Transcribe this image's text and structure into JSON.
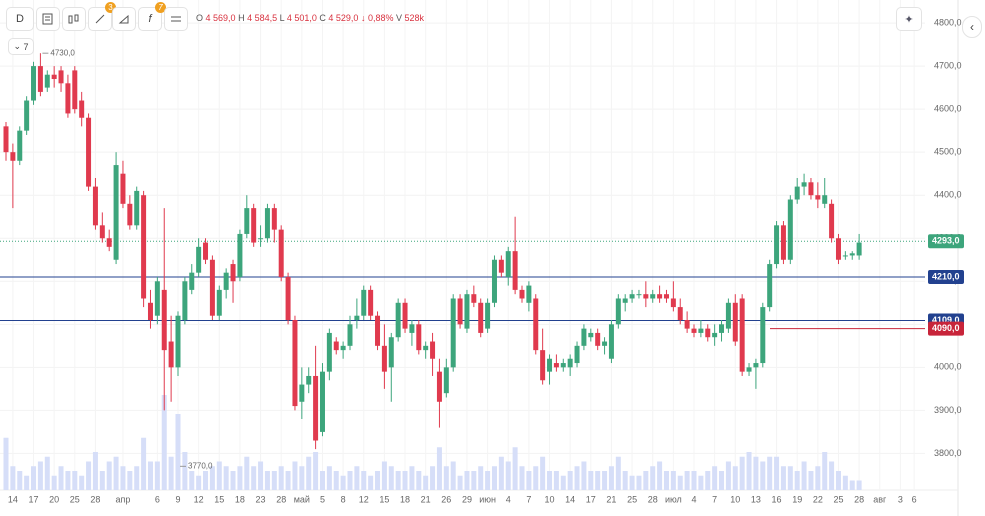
{
  "chart_data": {
    "type": "candlestick",
    "toolbar": {
      "timeframe": "D",
      "badges": [
        "3",
        "7"
      ],
      "indicators_count": "7"
    },
    "ohlc_header": {
      "o_label": "O",
      "o": "4 569,0",
      "h_label": "H",
      "h": "4 584,5",
      "l_label": "L",
      "l": "4 501,0",
      "c_label": "C",
      "c": "4 529,0",
      "change": "↓ 0,88%",
      "v_label": "V",
      "v": "528k"
    },
    "categories": [
      null,
      "14",
      null,
      null,
      "17",
      null,
      null,
      "20",
      null,
      null,
      "25",
      null,
      null,
      "28",
      null,
      null,
      null,
      "апр",
      null,
      null,
      null,
      null,
      "6",
      null,
      null,
      "9",
      null,
      null,
      "12",
      null,
      null,
      "15",
      null,
      null,
      "18",
      null,
      null,
      "23",
      null,
      null,
      "28",
      null,
      null,
      "май",
      null,
      null,
      "5",
      null,
      null,
      "8",
      null,
      null,
      "12",
      null,
      null,
      "15",
      null,
      null,
      "18",
      null,
      null,
      "21",
      null,
      null,
      "26",
      null,
      null,
      "29",
      null,
      null,
      "июн",
      null,
      null,
      "4",
      null,
      null,
      "7",
      null,
      null,
      "10",
      null,
      null,
      "14",
      null,
      null,
      "17",
      null,
      null,
      "21",
      null,
      null,
      "25",
      null,
      null,
      "28",
      null,
      null,
      "июл",
      null,
      null,
      "4",
      null,
      null,
      "7",
      null,
      null,
      "10",
      null,
      null,
      "13",
      null,
      null,
      "16",
      null,
      null,
      "19",
      null,
      null,
      "22",
      null,
      null,
      "25",
      null,
      null,
      "28",
      null,
      null,
      "авг",
      null,
      null,
      "3",
      null,
      "6"
    ],
    "open": [
      4560,
      4500,
      4480,
      4550,
      4620,
      4700,
      4650,
      4680,
      4690,
      4660,
      4690,
      4620,
      4580,
      4420,
      4330,
      4300,
      4250,
      4450,
      4380,
      4330,
      4400,
      4150,
      4120,
      4180,
      4060,
      4000,
      4110,
      4180,
      4220,
      4290,
      4250,
      4120,
      4180,
      4240,
      4210,
      4310,
      4370,
      4300,
      4300,
      4370,
      4320,
      4210,
      4110,
      3920,
      3960,
      3980,
      3850,
      3990,
      4060,
      4040,
      4050,
      4110,
      4120,
      4180,
      4120,
      4050,
      4000,
      4070,
      4150,
      4080,
      4100,
      4040,
      4060,
      3990,
      3940,
      4000,
      4160,
      4090,
      4170,
      4150,
      4090,
      4150,
      4250,
      4210,
      4270,
      4180,
      4150,
      4160,
      4040,
      3990,
      4010,
      4000,
      4000,
      4010,
      4050,
      4070,
      4080,
      4050,
      4020,
      4100,
      4150,
      4160,
      4170,
      4170,
      4160,
      4170,
      4170,
      4160,
      4140,
      4110,
      4090,
      4080,
      4090,
      4070,
      4080,
      4090,
      4150,
      4160,
      3990,
      4000,
      4010,
      4140,
      4240,
      4330,
      4250,
      4390,
      4420,
      4430,
      4400,
      4380,
      4380,
      4300,
      4260,
      4260,
      4260,
      null,
      null,
      null,
      null,
      null,
      null,
      null,
      null
    ],
    "high": [
      4570,
      4520,
      4560,
      4630,
      4710,
      4730,
      4690,
      4700,
      4700,
      4680,
      4700,
      4640,
      4590,
      4440,
      4360,
      4320,
      4500,
      4480,
      4400,
      4420,
      4410,
      4180,
      4210,
      4370,
      4120,
      4130,
      4210,
      4240,
      4300,
      4300,
      4260,
      4190,
      4230,
      4250,
      4320,
      4400,
      4380,
      4330,
      4380,
      4380,
      4330,
      4220,
      4120,
      4000,
      4000,
      4050,
      4010,
      4090,
      4070,
      4060,
      4120,
      4160,
      4190,
      4190,
      4130,
      4100,
      4080,
      4160,
      4160,
      4110,
      4110,
      4060,
      4080,
      4020,
      4020,
      4170,
      4170,
      4180,
      4190,
      4160,
      4160,
      4260,
      4260,
      4280,
      4350,
      4190,
      4200,
      4170,
      4090,
      4030,
      4030,
      4020,
      4030,
      4060,
      4100,
      4090,
      4090,
      4070,
      4110,
      4170,
      4170,
      4180,
      4180,
      4200,
      4180,
      4190,
      4180,
      4200,
      4160,
      4130,
      4100,
      4110,
      4100,
      4100,
      4110,
      4160,
      4170,
      4170,
      4010,
      4020,
      4150,
      4250,
      4340,
      4340,
      4400,
      4440,
      4450,
      4440,
      4430,
      4440,
      4390,
      4310,
      4270,
      4270,
      4310,
      null,
      null,
      null,
      null,
      null,
      null,
      null,
      null
    ],
    "low": [
      4480,
      4370,
      4470,
      4540,
      4610,
      4630,
      4640,
      4650,
      4640,
      4580,
      4590,
      4560,
      4410,
      4320,
      4290,
      4270,
      4240,
      4370,
      4320,
      4320,
      4140,
      4090,
      4100,
      3900,
      3920,
      3980,
      4100,
      4170,
      4210,
      4240,
      4110,
      4110,
      4160,
      4150,
      4200,
      4300,
      4280,
      4280,
      4290,
      4290,
      4200,
      4100,
      3900,
      3880,
      3940,
      3810,
      3840,
      3970,
      4030,
      4020,
      4040,
      4090,
      4110,
      4110,
      4040,
      3950,
      3920,
      4060,
      4080,
      4050,
      4030,
      4020,
      3980,
      3860,
      3930,
      3990,
      4090,
      4080,
      4140,
      4070,
      4080,
      4140,
      4210,
      4190,
      4170,
      4150,
      4130,
      4030,
      3960,
      3960,
      3990,
      3990,
      3980,
      4000,
      4040,
      4060,
      4040,
      4030,
      4010,
      4090,
      4130,
      4150,
      4160,
      4140,
      4150,
      4150,
      4150,
      4130,
      4100,
      4080,
      4070,
      4070,
      4060,
      4050,
      4060,
      4080,
      4050,
      3980,
      3980,
      3950,
      4000,
      4130,
      4230,
      4240,
      4240,
      4380,
      4400,
      4390,
      4370,
      4370,
      4290,
      4240,
      4250,
      4250,
      4250,
      null,
      null,
      null,
      null,
      null,
      null,
      null,
      null
    ],
    "close": [
      4500,
      4480,
      4550,
      4620,
      4700,
      4640,
      4680,
      4670,
      4660,
      4590,
      4600,
      4580,
      4420,
      4330,
      4300,
      4280,
      4470,
      4380,
      4330,
      4410,
      4160,
      4110,
      4200,
      4040,
      4000,
      4120,
      4200,
      4220,
      4280,
      4250,
      4120,
      4180,
      4220,
      4200,
      4310,
      4370,
      4290,
      4300,
      4370,
      4320,
      4210,
      4110,
      3910,
      3960,
      3980,
      3830,
      3990,
      4080,
      4040,
      4050,
      4100,
      4120,
      4180,
      4120,
      4050,
      3990,
      4070,
      4150,
      4090,
      4100,
      4040,
      4050,
      4020,
      3920,
      4000,
      4160,
      4100,
      4170,
      4150,
      4080,
      4150,
      4250,
      4220,
      4270,
      4180,
      4160,
      4190,
      4040,
      3970,
      4020,
      4000,
      4010,
      4020,
      4050,
      4090,
      4080,
      4050,
      4060,
      4100,
      4160,
      4160,
      4170,
      4170,
      4160,
      4170,
      4160,
      4160,
      4140,
      4110,
      4090,
      4080,
      4090,
      4070,
      4080,
      4100,
      4150,
      4060,
      3990,
      4000,
      4010,
      4140,
      4240,
      4330,
      4250,
      4390,
      4420,
      4430,
      4400,
      4390,
      4400,
      4300,
      4250,
      4260,
      4265,
      4290,
      null,
      null,
      null,
      null,
      null,
      null,
      null,
      null
    ],
    "volume": [
      55,
      25,
      20,
      15,
      25,
      30,
      35,
      15,
      25,
      20,
      20,
      15,
      30,
      40,
      20,
      30,
      35,
      25,
      20,
      25,
      55,
      30,
      30,
      100,
      35,
      80,
      40,
      20,
      15,
      20,
      25,
      30,
      25,
      20,
      25,
      35,
      25,
      30,
      20,
      20,
      25,
      20,
      30,
      25,
      35,
      40,
      20,
      25,
      20,
      15,
      20,
      25,
      20,
      15,
      20,
      30,
      25,
      20,
      20,
      25,
      20,
      15,
      25,
      45,
      25,
      30,
      15,
      20,
      20,
      25,
      20,
      25,
      35,
      30,
      45,
      25,
      20,
      25,
      35,
      20,
      20,
      15,
      20,
      25,
      30,
      20,
      20,
      20,
      25,
      35,
      20,
      15,
      15,
      20,
      25,
      30,
      20,
      20,
      15,
      20,
      20,
      15,
      20,
      25,
      20,
      30,
      25,
      35,
      40,
      35,
      30,
      35,
      35,
      25,
      25,
      20,
      30,
      20,
      25,
      40,
      30,
      20,
      15,
      10,
      10,
      null,
      null,
      null,
      null,
      null,
      null,
      null,
      null
    ],
    "up_color": "#3da57c",
    "down_color": "#e03a4e",
    "volume_color": "#d6def8",
    "ylim": [
      3715,
      4835
    ],
    "yticks": [
      {
        "value": 3800,
        "label": "3800,0"
      },
      {
        "value": 3900,
        "label": "3900,0"
      },
      {
        "value": 4000,
        "label": "4000,0"
      },
      {
        "value": 4100,
        "label": "4100,0"
      },
      {
        "value": 4200,
        "label": "4200,0"
      },
      {
        "value": 4300,
        "label": "4300,0"
      },
      {
        "value": 4400,
        "label": "4400,0"
      },
      {
        "value": 4500,
        "label": "4500,0"
      },
      {
        "value": 4600,
        "label": "4600,0"
      },
      {
        "value": 4700,
        "label": "4700,0"
      },
      {
        "value": 4800,
        "label": "4800,0"
      }
    ],
    "levels": [
      {
        "value": 4210,
        "label": "4210,0",
        "color": "#22418f"
      },
      {
        "value": 4109,
        "label": "4109,0",
        "color": "#22418f"
      },
      {
        "value": 4090,
        "label": "4090,0",
        "color": "#c8243a"
      }
    ],
    "last_price": {
      "value": 4293,
      "label": "4293,0",
      "color": "#3da57c"
    },
    "annotations": [
      {
        "value": 4730,
        "label": "4730,0"
      },
      {
        "value": 3770,
        "label": "3770,0"
      }
    ],
    "grid": true
  }
}
